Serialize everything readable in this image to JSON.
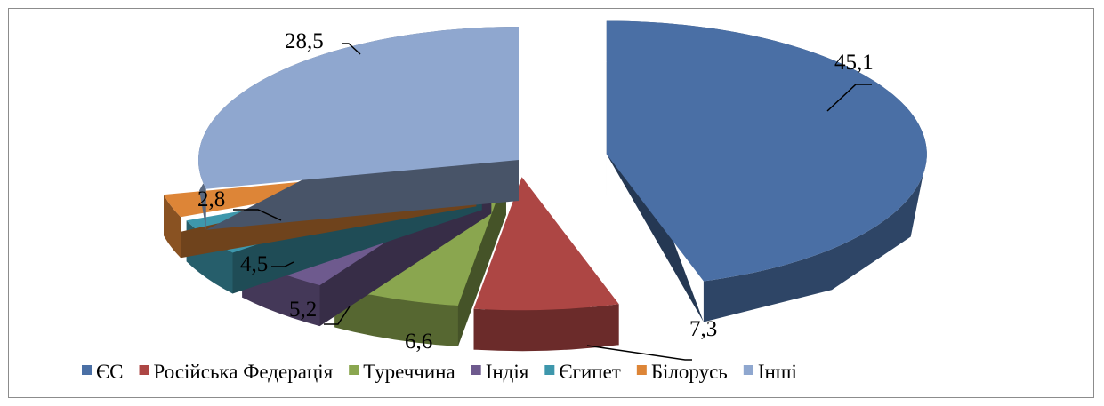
{
  "chart_data": {
    "type": "pie",
    "style": "3d-exploded",
    "categories": [
      "ЄС",
      "Російська Федерація",
      "Туреччина",
      "Індія",
      "Єгипет",
      "Білорусь",
      "Інші"
    ],
    "values": [
      45.1,
      7.3,
      6.6,
      5.2,
      4.5,
      2.8,
      28.5
    ],
    "value_labels": [
      "45,1",
      "7,3",
      "6,6",
      "5,2",
      "4,5",
      "2,8",
      "28,5"
    ],
    "colors": [
      "#4a6fa5",
      "#ad4644",
      "#8aa64f",
      "#6e5a8e",
      "#3e97ac",
      "#dd8537",
      "#8fa7cf"
    ],
    "legend_position": "bottom"
  }
}
